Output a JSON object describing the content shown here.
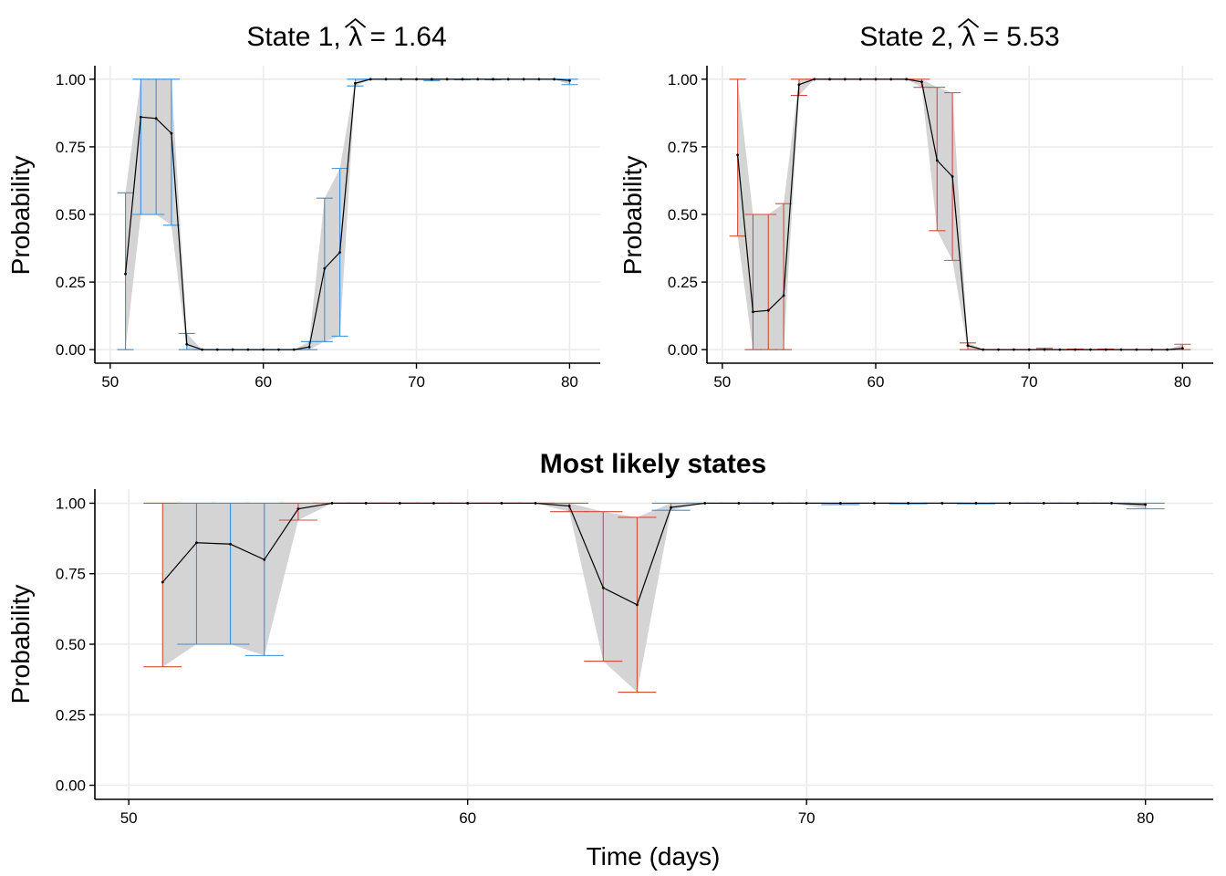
{
  "chart_data": [
    {
      "type": "line",
      "panel": "state-1",
      "title_parts": {
        "prefix": "State 1, ",
        "symbol": "λ",
        "suffix": " = 1.64"
      },
      "ylabel": "Probability",
      "xlabel": "",
      "xlim": [
        49,
        82
      ],
      "ylim": [
        -0.05,
        1.05
      ],
      "xticks": [
        50,
        60,
        70,
        80
      ],
      "yticks": [
        0,
        0.25,
        0.5,
        0.75,
        1
      ],
      "ytick_labels": [
        "0.00",
        "0.25",
        "0.50",
        "0.75",
        "1.00"
      ],
      "grid": true,
      "error_color": "#3c8fd6",
      "x": [
        51,
        52,
        53,
        54,
        55,
        56,
        57,
        58,
        59,
        60,
        61,
        62,
        63,
        64,
        65,
        66,
        67,
        68,
        69,
        70,
        71,
        72,
        73,
        74,
        75,
        76,
        77,
        78,
        79,
        80
      ],
      "mean": [
        0.28,
        0.86,
        0.855,
        0.8,
        0.02,
        0.0,
        0.0,
        0.0,
        0.0,
        0.0,
        0.0,
        0.0,
        0.01,
        0.3,
        0.36,
        0.985,
        1.0,
        1.0,
        1.0,
        1.0,
        1.0,
        1.0,
        1.0,
        1.0,
        1.0,
        1.0,
        1.0,
        1.0,
        1.0,
        0.995
      ],
      "lower": [
        0.0,
        0.5,
        0.5,
        0.46,
        0.0,
        0.0,
        0.0,
        0.0,
        0.0,
        0.0,
        0.0,
        0.0,
        0.0,
        0.03,
        0.05,
        0.975,
        1.0,
        1.0,
        1.0,
        1.0,
        0.995,
        1.0,
        0.998,
        1.0,
        0.998,
        1.0,
        1.0,
        1.0,
        1.0,
        0.98
      ],
      "upper": [
        0.58,
        1.0,
        1.0,
        1.0,
        0.06,
        0.0,
        0.0,
        0.0,
        0.0,
        0.0,
        0.0,
        0.0,
        0.03,
        0.56,
        0.67,
        1.0,
        1.0,
        1.0,
        1.0,
        1.0,
        1.0,
        1.0,
        1.0,
        1.0,
        1.0,
        1.0,
        1.0,
        1.0,
        1.0,
        1.0
      ]
    },
    {
      "type": "line",
      "panel": "state-2",
      "title_parts": {
        "prefix": "State 2, ",
        "symbol": "λ",
        "suffix": " = 5.53"
      },
      "ylabel": "Probability",
      "xlabel": "",
      "xlim": [
        49,
        82
      ],
      "ylim": [
        -0.05,
        1.05
      ],
      "xticks": [
        50,
        60,
        70,
        80
      ],
      "yticks": [
        0,
        0.25,
        0.5,
        0.75,
        1
      ],
      "ytick_labels": [
        "0.00",
        "0.25",
        "0.50",
        "0.75",
        "1.00"
      ],
      "grid": true,
      "error_color": "#d24c3c",
      "x": [
        51,
        52,
        53,
        54,
        55,
        56,
        57,
        58,
        59,
        60,
        61,
        62,
        63,
        64,
        65,
        66,
        67,
        68,
        69,
        70,
        71,
        72,
        73,
        74,
        75,
        76,
        77,
        78,
        79,
        80
      ],
      "mean": [
        0.72,
        0.14,
        0.145,
        0.2,
        0.98,
        1.0,
        1.0,
        1.0,
        1.0,
        1.0,
        1.0,
        1.0,
        0.99,
        0.7,
        0.64,
        0.015,
        0.0,
        0.0,
        0.0,
        0.0,
        0.0,
        0.0,
        0.0,
        0.0,
        0.0,
        0.0,
        0.0,
        0.0,
        0.0,
        0.005
      ],
      "lower": [
        0.42,
        0.0,
        0.0,
        0.0,
        0.94,
        1.0,
        1.0,
        1.0,
        1.0,
        1.0,
        1.0,
        1.0,
        0.97,
        0.44,
        0.33,
        0.0,
        0.0,
        0.0,
        0.0,
        0.0,
        0.0,
        0.0,
        0.0,
        0.0,
        0.0,
        0.0,
        0.0,
        0.0,
        0.0,
        0.0
      ],
      "upper": [
        1.0,
        0.5,
        0.5,
        0.54,
        1.0,
        1.0,
        1.0,
        1.0,
        1.0,
        1.0,
        1.0,
        1.0,
        1.0,
        0.97,
        0.95,
        0.025,
        0.0,
        0.0,
        0.0,
        0.0,
        0.005,
        0.0,
        0.002,
        0.0,
        0.002,
        0.0,
        0.0,
        0.0,
        0.0,
        0.02
      ]
    },
    {
      "type": "line",
      "panel": "most-likely",
      "title": "Most likely states",
      "ylabel": "Probability",
      "xlabel": "Time (days)",
      "xlim": [
        49,
        82
      ],
      "ylim": [
        -0.05,
        1.05
      ],
      "xticks": [
        50,
        60,
        70,
        80
      ],
      "yticks": [
        0,
        0.25,
        0.5,
        0.75,
        1
      ],
      "ytick_labels": [
        "0.00",
        "0.25",
        "0.50",
        "0.75",
        "1.00"
      ],
      "grid": true,
      "state_colors": {
        "1": "#3c8fd6",
        "2": "#d24c3c"
      },
      "x": [
        51,
        52,
        53,
        54,
        55,
        56,
        57,
        58,
        59,
        60,
        61,
        62,
        63,
        64,
        65,
        66,
        67,
        68,
        69,
        70,
        71,
        72,
        73,
        74,
        75,
        76,
        77,
        78,
        79,
        80
      ],
      "state": [
        2,
        1,
        1,
        1,
        2,
        2,
        2,
        2,
        2,
        2,
        2,
        2,
        2,
        2,
        2,
        1,
        1,
        1,
        1,
        1,
        1,
        1,
        1,
        1,
        1,
        1,
        1,
        1,
        1,
        1
      ],
      "mean": [
        0.72,
        0.86,
        0.855,
        0.8,
        0.98,
        1.0,
        1.0,
        1.0,
        1.0,
        1.0,
        1.0,
        1.0,
        0.99,
        0.7,
        0.64,
        0.985,
        1.0,
        1.0,
        1.0,
        1.0,
        1.0,
        1.0,
        1.0,
        1.0,
        1.0,
        1.0,
        1.0,
        1.0,
        1.0,
        0.995
      ],
      "lower": [
        0.42,
        0.5,
        0.5,
        0.46,
        0.94,
        1.0,
        1.0,
        1.0,
        1.0,
        1.0,
        1.0,
        1.0,
        0.97,
        0.44,
        0.33,
        0.975,
        1.0,
        1.0,
        1.0,
        1.0,
        0.995,
        1.0,
        0.998,
        1.0,
        0.998,
        1.0,
        1.0,
        1.0,
        1.0,
        0.98
      ],
      "upper": [
        1.0,
        1.0,
        1.0,
        1.0,
        1.0,
        1.0,
        1.0,
        1.0,
        1.0,
        1.0,
        1.0,
        1.0,
        1.0,
        0.97,
        0.95,
        1.0,
        1.0,
        1.0,
        1.0,
        1.0,
        1.0,
        1.0,
        1.0,
        1.0,
        1.0,
        1.0,
        1.0,
        1.0,
        1.0,
        1.0
      ]
    }
  ]
}
